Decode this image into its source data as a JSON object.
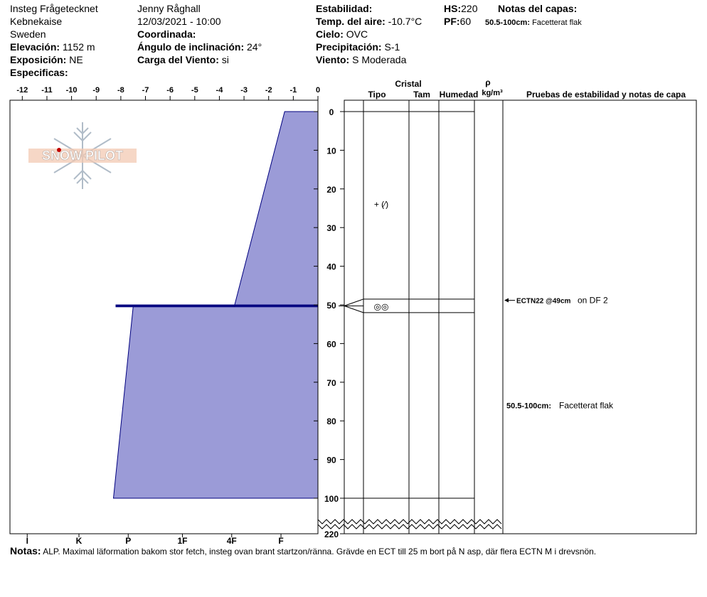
{
  "header": {
    "location": "Insteg Frågetecknet",
    "region": "Kebnekaise",
    "country": "Sweden",
    "elevation_label": "Elevación:",
    "elevation_value": "1152 m",
    "aspect_label": "Exposición:",
    "aspect_value": "NE",
    "specifics_label": "Especificas:",
    "observer": "Jenny Råghall",
    "datetime": "12/03/2021 - 10:00",
    "coord_label": "Coordinada:",
    "slope_label": "Ángulo de inclinación:",
    "slope_value": "24°",
    "wind_load_label": "Carga del Viento:",
    "wind_load_value": "si",
    "stability_label": "Estabilidad:",
    "air_temp_label": "Temp. del aire:",
    "air_temp_value": "-10.7°C",
    "sky_label": "Cielo:",
    "sky_value": "OVC",
    "precip_label": "Precipitación:",
    "precip_value": "S-1",
    "wind_label": "Viento:",
    "wind_value": "S Moderada",
    "hs_label": "HS:",
    "hs_value": "220",
    "pf_label": "PF:",
    "pf_value": "60",
    "layer_notes_label": "Notas del capas:",
    "layer_note_range": "50.5-100cm:",
    "layer_note_text": "Facetterat flak"
  },
  "columns": {
    "crystal": "Cristal",
    "type": "Tipo",
    "size": "Tam",
    "moisture": "Humedad",
    "rho": "ρ",
    "density_unit": "kg/m³",
    "stability_tests": "Pruebas de estabilidad y notas de capa"
  },
  "logo_text": "SNOW PILOT",
  "chart_data": {
    "type": "area",
    "temperature_axis": {
      "range": [
        -12.5,
        0
      ],
      "ticks": [
        "-12",
        "-11",
        "-10",
        "-9",
        "-8",
        "-7",
        "-6",
        "-5",
        "-4",
        "-3",
        "-2",
        "-1",
        "0"
      ],
      "tick_values": [
        -12,
        -11,
        -10,
        -9,
        -8,
        -7,
        -6,
        -5,
        -4,
        -3,
        -2,
        -1,
        0
      ]
    },
    "hardness_axis": {
      "labels": [
        "I",
        "K",
        "P",
        "1F",
        "4F",
        "F"
      ],
      "positions": [
        -11.8,
        -9.7,
        -7.7,
        -5.5,
        -3.5,
        -1.5
      ]
    },
    "depth_axis": {
      "range": [
        0,
        110
      ],
      "ticks": [
        "0",
        "10",
        "20",
        "30",
        "40",
        "50",
        "60",
        "70",
        "80",
        "90",
        "100",
        "220"
      ],
      "tick_values": [
        0,
        10,
        20,
        30,
        40,
        50,
        60,
        70,
        80,
        90,
        100,
        110
      ]
    },
    "hardness_profile": [
      {
        "depth": 0,
        "hardness": -1.35
      },
      {
        "depth": 50.5,
        "hardness": -3.4
      },
      {
        "depth": 50.5,
        "hardness": -8.2
      },
      {
        "depth": 50.0,
        "hardness": -8.2
      },
      {
        "depth": 50.0,
        "hardness": 0
      },
      {
        "depth": 50.5,
        "hardness": 0
      },
      {
        "depth": 50.5,
        "hardness": -7.5
      },
      {
        "depth": 100,
        "hardness": -8.3
      }
    ],
    "layer_boundaries": [
      0,
      48.5,
      52,
      100
    ],
    "crystal_symbols": [
      {
        "depth": 24,
        "symbol": "+ (⁄)"
      },
      {
        "depth": 50.5,
        "symbol": "◎◎"
      }
    ],
    "test_results": [
      {
        "depth": 49,
        "result": "ECTN22 @49cm",
        "note": "on DF 2"
      }
    ],
    "layer_notes_on_chart": [
      {
        "depth": 76,
        "range": "50.5-100cm:",
        "text": "Facetterat flak"
      }
    ],
    "fill_color": "#9b9bd7",
    "line_color": "#00007f"
  },
  "notes": {
    "label": "Notas:",
    "text": "ALP. Maximal läformation bakom stor fetch, insteg ovan brant startzon/ränna. Grävde en ECT till 25 m bort på N asp, där flera ECTN M i drevsnön."
  }
}
